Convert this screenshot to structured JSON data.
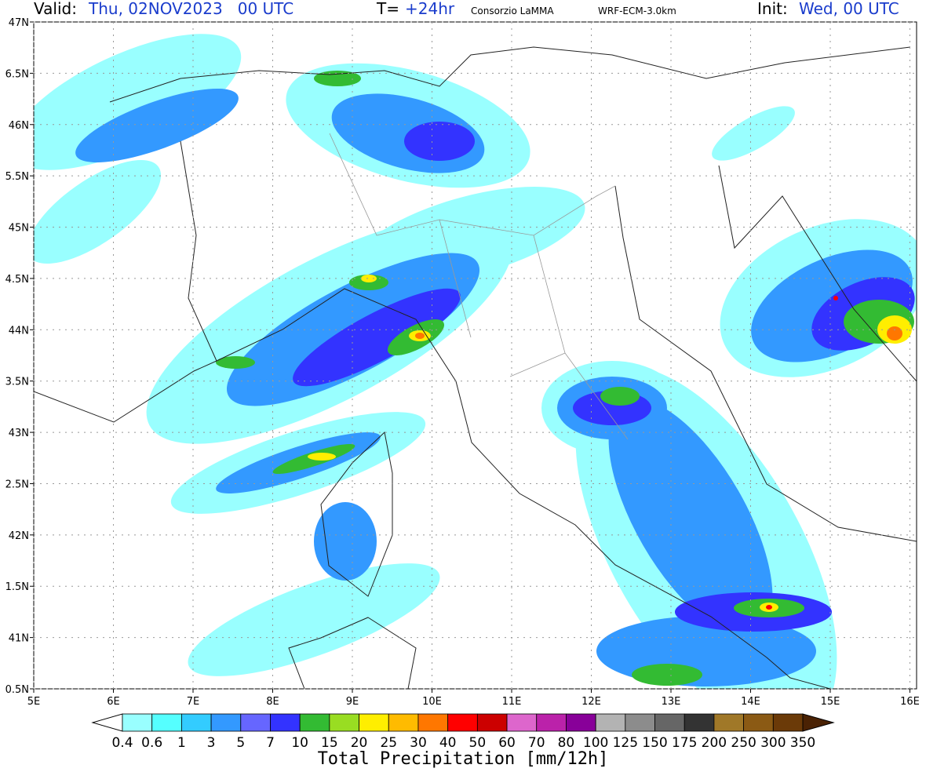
{
  "header": {
    "valid_label": "Valid:",
    "valid_value": "Thu, 02NOV2023   00 UTC",
    "t_label": "T=",
    "t_value": "+24hr",
    "credit": "Consorzio LaMMA",
    "model": "WRF-ECM-3.0km",
    "init_label": "Init:",
    "init_value": "Wed, 00 UTC"
  },
  "map": {
    "lat_labels": [
      "47N",
      "6.5N",
      "46N",
      "5.5N",
      "45N",
      "4.5N",
      "44N",
      "3.5N",
      "43N",
      "2.5N",
      "42N",
      "1.5N",
      "41N",
      "0.5N"
    ],
    "lon_labels": [
      "5E",
      "6E",
      "7E",
      "8E",
      "9E",
      "10E",
      "11E",
      "12E",
      "13E",
      "14E",
      "15E",
      "16E"
    ]
  },
  "colorbar": {
    "title": "Total Precipitation [mm/12h]",
    "labels": [
      "0.4",
      "0.6",
      "1",
      "3",
      "5",
      "7",
      "10",
      "15",
      "20",
      "25",
      "30",
      "40",
      "50",
      "60",
      "70",
      "80",
      "100",
      "125",
      "150",
      "175",
      "200",
      "250",
      "300",
      "350"
    ],
    "colors": [
      "#ffffff",
      "#99ffff",
      "#55ffff",
      "#33ccff",
      "#3399ff",
      "#6666ff",
      "#3333ff",
      "#33bb33",
      "#99dd22",
      "#ffee00",
      "#ffbb00",
      "#ff7700",
      "#ff0000",
      "#cc0000",
      "#dd66cc",
      "#bb22aa",
      "#880099",
      "#b3b3b3",
      "#8c8c8c",
      "#666666",
      "#333333",
      "#a07828",
      "#8b5a14",
      "#6b3a08",
      "#4a2204"
    ]
  }
}
